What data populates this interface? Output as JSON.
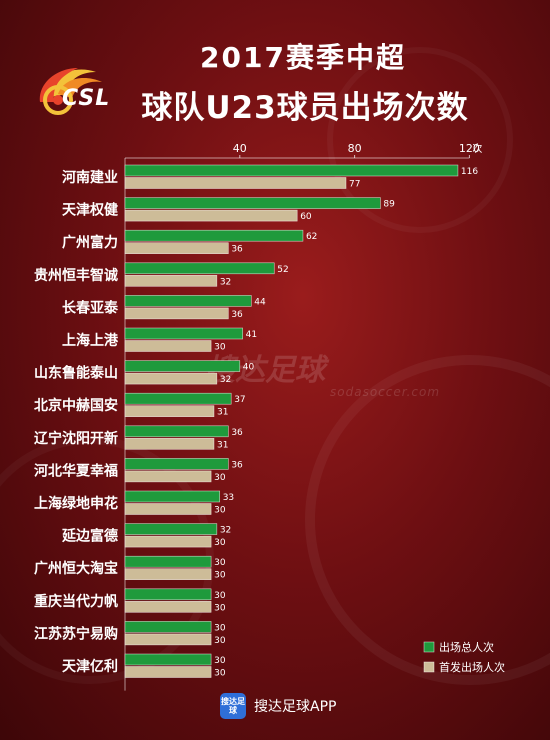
{
  "title_line1": "2017赛季中超",
  "title_line2": "球队U23球员出场次数",
  "logo_text": "CSL",
  "watermark": "搜达足球",
  "watermark_sub": "sodasoccer.com",
  "footer": {
    "icon_text": "搜达足球",
    "app_name": "搜达足球APP"
  },
  "colors": {
    "total": "#1f9a3c",
    "starts": "#cdbc98"
  },
  "chart_data": {
    "type": "bar",
    "orientation": "horizontal",
    "categories": [
      "河南建业",
      "天津权健",
      "广州富力",
      "贵州恒丰智诚",
      "长春亚泰",
      "上海上港",
      "山东鲁能泰山",
      "北京中赫国安",
      "辽宁沈阳开新",
      "河北华夏幸福",
      "上海绿地申花",
      "延边富德",
      "广州恒大淘宝",
      "重庆当代力帆",
      "江苏苏宁易购",
      "天津亿利"
    ],
    "series": [
      {
        "name": "出场总人次",
        "values": [
          116,
          89,
          62,
          52,
          44,
          41,
          40,
          37,
          36,
          36,
          33,
          32,
          30,
          30,
          30,
          30
        ]
      },
      {
        "name": "首发出场人次",
        "values": [
          77,
          60,
          36,
          32,
          36,
          30,
          32,
          31,
          31,
          30,
          30,
          30,
          30,
          30,
          30,
          30
        ]
      }
    ],
    "xlim": [
      0,
      120
    ],
    "xticks": [
      "40",
      "80",
      "120"
    ],
    "xunit": "次",
    "legend_position": "bottom-right"
  }
}
